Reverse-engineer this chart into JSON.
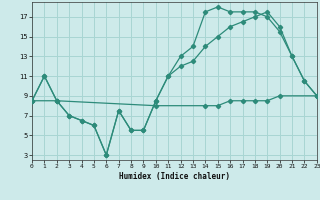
{
  "xlabel": "Humidex (Indice chaleur)",
  "line_color": "#2d8b7a",
  "bg_color": "#cdeaea",
  "grid_color": "#a8d5d3",
  "xlim": [
    0,
    23
  ],
  "ylim": [
    2.5,
    18.5
  ],
  "xticks": [
    0,
    1,
    2,
    3,
    4,
    5,
    6,
    7,
    8,
    9,
    10,
    11,
    12,
    13,
    14,
    15,
    16,
    17,
    18,
    19,
    20,
    21,
    22,
    23
  ],
  "yticks": [
    3,
    5,
    7,
    9,
    11,
    13,
    15,
    17
  ],
  "series1_x": [
    0,
    1,
    2,
    3,
    4,
    5,
    6,
    7,
    8,
    9,
    10,
    11,
    12,
    13,
    14,
    15,
    16,
    17,
    18,
    19,
    20,
    21,
    22,
    23
  ],
  "series1_y": [
    8.5,
    11,
    8.5,
    7,
    6.5,
    6,
    3,
    7.5,
    5.5,
    5.5,
    8.5,
    11,
    13,
    14,
    17.5,
    18,
    17.5,
    17.5,
    17.5,
    17,
    15.5,
    13,
    10.5,
    9
  ],
  "series2_x": [
    0,
    1,
    2,
    3,
    4,
    5,
    6,
    7,
    8,
    9,
    10,
    11,
    12,
    13,
    14,
    15,
    16,
    17,
    18,
    19,
    20,
    21,
    22,
    23
  ],
  "series2_y": [
    8.5,
    11,
    8.5,
    7,
    6.5,
    6,
    3,
    7.5,
    5.5,
    5.5,
    8.5,
    11,
    12,
    12.5,
    14,
    15,
    16,
    16.5,
    17,
    17.5,
    16,
    13,
    10.5,
    9
  ],
  "series3_x": [
    0,
    2,
    10,
    14,
    15,
    16,
    17,
    18,
    19,
    20,
    23
  ],
  "series3_y": [
    8.5,
    8.5,
    8.0,
    8.0,
    8.0,
    8.5,
    8.5,
    8.5,
    8.5,
    9.0,
    9.0
  ]
}
